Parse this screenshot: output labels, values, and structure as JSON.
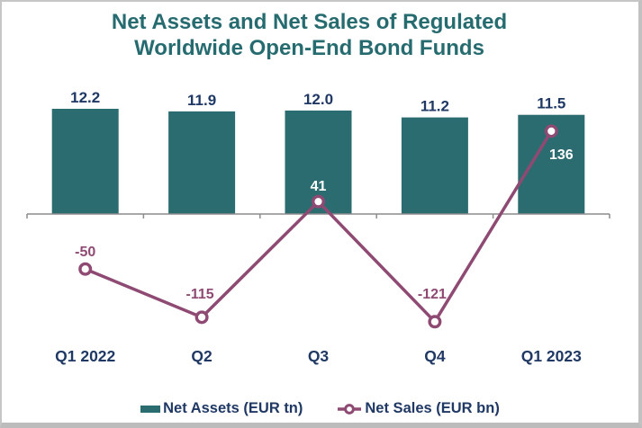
{
  "frame": {
    "background": "#FFFFFF",
    "border_color": "#C1C1C1"
  },
  "title": {
    "text": "Net Assets and Net Sales of Regulated Worldwide Open-End Bond Funds",
    "color": "#266B70"
  },
  "chart_data": {
    "type": "combo-bar-line",
    "categories": [
      "Q1 2022",
      "Q2",
      "Q3",
      "Q4",
      "Q1 2023"
    ],
    "series": [
      {
        "name": "Net Assets (EUR tn)",
        "chart_type": "bar",
        "values": [
          12.2,
          11.9,
          12.0,
          11.2,
          11.5
        ],
        "color": "#2A6C70",
        "data_label_color": "#1F3864",
        "baseline": 0
      },
      {
        "name": "Net Sales (EUR bn)",
        "chart_type": "line",
        "values": [
          -50,
          -115,
          41,
          -121,
          136
        ],
        "color": "#8E4A73",
        "marker": "open-circle-white-fill",
        "data_label_colors": [
          "#8E4A73",
          "#8E4A73",
          "#FFFFFF",
          "#8E4A73",
          "#FFFFFF"
        ]
      }
    ],
    "axes": {
      "x": {
        "tick_labels": [
          "Q1 2022",
          "Q2",
          "Q3",
          "Q4",
          "Q1 2023"
        ],
        "label_color": "#1F3864",
        "line_color": "#8C8C8C",
        "ticks_visible": true
      },
      "y": {
        "visible": false,
        "bar_axis_min": 0,
        "line_axis_zero_between": "bars above axis, negative sales below"
      }
    },
    "grid": false,
    "legend_position": "bottom",
    "data_labels_visible": true
  },
  "legend": {
    "text_color": "#1F3864",
    "items": [
      {
        "label": "Net Assets (EUR tn)",
        "swatch": "teal-rect"
      },
      {
        "label": "Net Sales (EUR bn)",
        "swatch": "maroon-line-open-circle"
      }
    ]
  }
}
